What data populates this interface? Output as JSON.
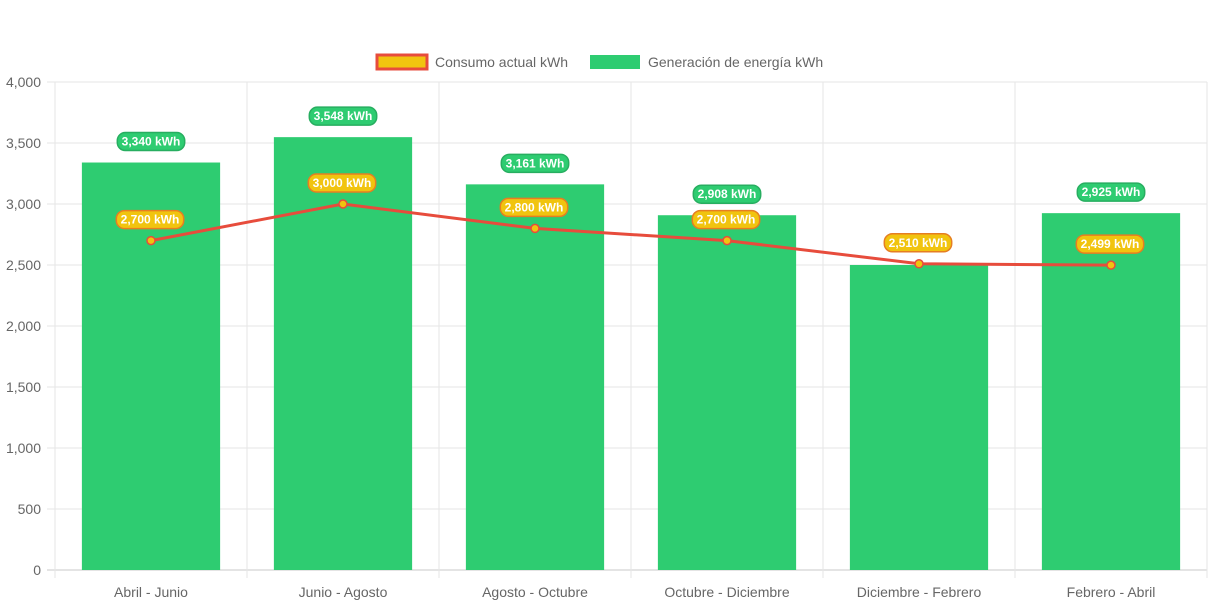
{
  "chart_data": {
    "type": "bar",
    "categories": [
      "Abril - Junio",
      "Junio - Agosto",
      "Agosto - Octubre",
      "Octubre - Diciembre",
      "Diciembre - Febrero",
      "Febrero - Abril"
    ],
    "series": [
      {
        "name": "Consumo actual kWh",
        "type": "line",
        "values": [
          2700,
          3000,
          2800,
          2700,
          2510,
          2499
        ],
        "labels": [
          "2,700 kWh",
          "3,000 kWh",
          "2,800 kWh",
          "2,700 kWh",
          "2,510 kWh",
          "2,499 kWh"
        ],
        "color": "#e74c3c",
        "fill": "#f1c40f"
      },
      {
        "name": "Generación de energía kWh",
        "type": "bar",
        "values": [
          3340,
          3548,
          3161,
          2908,
          2500,
          2925
        ],
        "labels": [
          "3,340 kWh",
          "3,548 kWh",
          "3,161 kWh",
          "2,908 kWh",
          "",
          "2,925 kWh"
        ],
        "color": "#2ecc71"
      }
    ],
    "ylim": [
      0,
      4000
    ],
    "yticks": [
      0,
      500,
      1000,
      1500,
      2000,
      2500,
      3000,
      3500,
      4000
    ],
    "ytick_labels": [
      "0",
      "500",
      "1,000",
      "1,500",
      "2,000",
      "2,500",
      "3,000",
      "3,500",
      "4,000"
    ],
    "grid": true,
    "legend_position": "top"
  }
}
